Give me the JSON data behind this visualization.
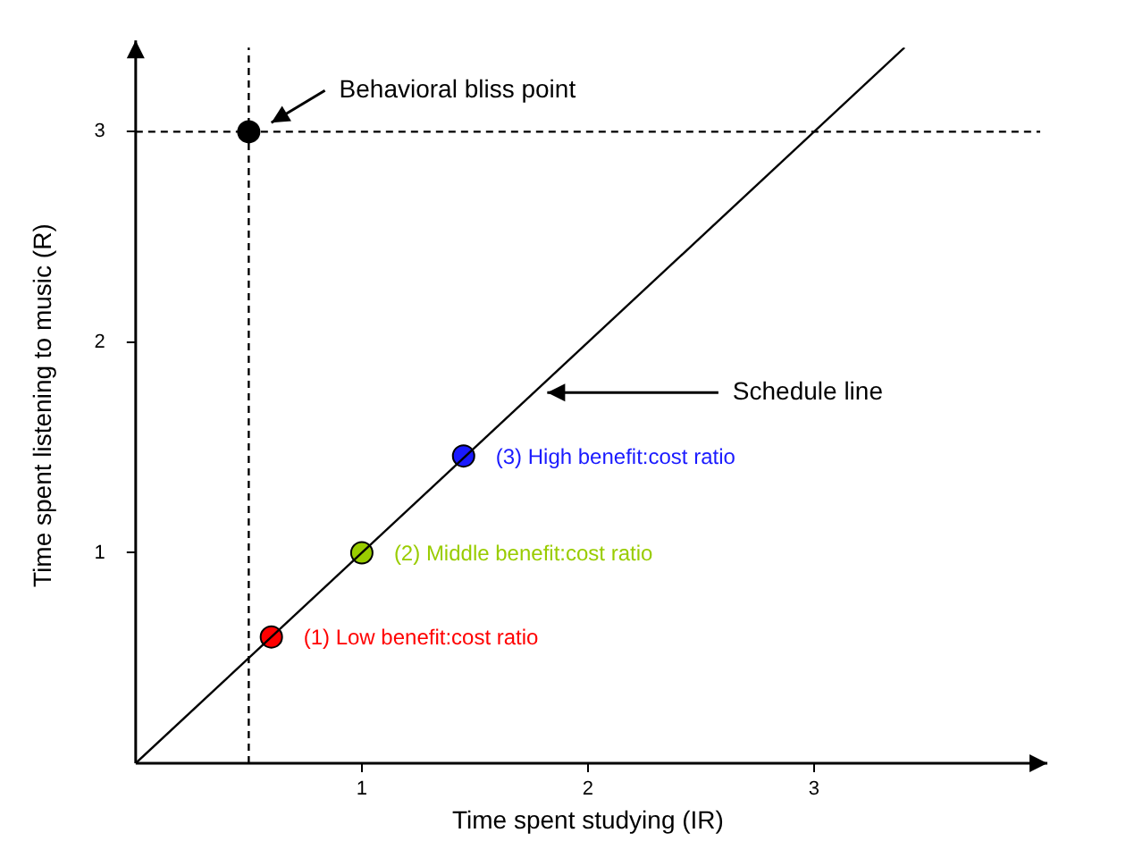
{
  "chart_data": {
    "type": "scatter",
    "xlabel": "Time spent studying (IR)",
    "ylabel": "Time spent listening to music (R)",
    "xlim": [
      0,
      4
    ],
    "ylim": [
      0,
      3.4
    ],
    "xticks": [
      1,
      2,
      3
    ],
    "yticks": [
      1,
      2,
      3
    ],
    "grid": false,
    "legend": false,
    "marker": "circle",
    "series": [
      {
        "type": "line",
        "color": "#000000",
        "x": [
          0,
          3.4
        ],
        "values": [
          0,
          3.4
        ],
        "marker": "none"
      },
      {
        "color": "#000000",
        "x": [
          0.5
        ],
        "values": [
          3
        ]
      },
      {
        "name": "(1) Low benefit:cost ratio",
        "color": "#ff0000",
        "x": [
          0.6
        ],
        "values": [
          0.6
        ]
      },
      {
        "name": "(2) Middle benefit:cost ratio",
        "color": "#99cc00",
        "x": [
          1
        ],
        "values": [
          1
        ]
      },
      {
        "name": "(3) High benefit:cost ratio",
        "color": "#1a1aff",
        "x": [
          1.45
        ],
        "values": [
          1.46
        ]
      }
    ],
    "ref_lines": [
      {
        "axis": "x",
        "value": 0.5,
        "line_style": "dashed"
      },
      {
        "axis": "y",
        "value": 3,
        "line_style": "dashed"
      }
    ],
    "annotations": [
      "Behavioral bliss point",
      "Schedule line"
    ]
  }
}
